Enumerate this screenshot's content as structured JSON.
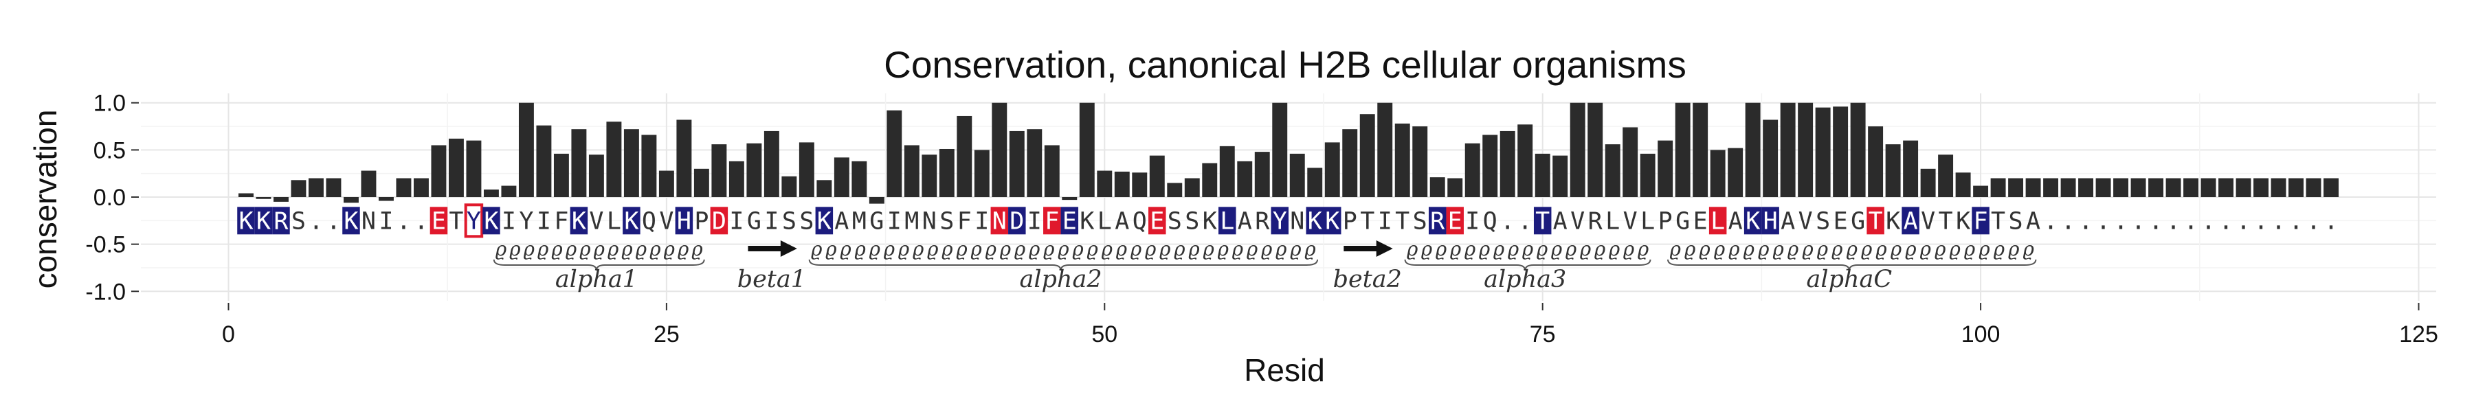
{
  "chart_data": {
    "type": "bar",
    "title": "Conservation, canonical H2B cellular organisms",
    "xlabel": "Resid",
    "ylabel": "conservation",
    "xlim": [
      -5,
      126
    ],
    "ylim": [
      -1.1,
      1.1
    ],
    "xticks": [
      0,
      25,
      50,
      75,
      100,
      125
    ],
    "yticks": [
      -1.0,
      -0.5,
      0.0,
      0.5,
      1.0
    ],
    "ytick_labels": [
      "-1.0",
      "-0.5",
      "0.0",
      "0.5",
      "1.0"
    ],
    "grid": true,
    "bar_color": "#2b2b2b",
    "x": [
      1,
      2,
      3,
      4,
      5,
      6,
      7,
      8,
      9,
      10,
      11,
      12,
      13,
      14,
      15,
      16,
      17,
      18,
      19,
      20,
      21,
      22,
      23,
      24,
      25,
      26,
      27,
      28,
      29,
      30,
      31,
      32,
      33,
      34,
      35,
      36,
      37,
      38,
      39,
      40,
      41,
      42,
      43,
      44,
      45,
      46,
      47,
      48,
      49,
      50,
      51,
      52,
      53,
      54,
      55,
      56,
      57,
      58,
      59,
      60,
      61,
      62,
      63,
      64,
      65,
      66,
      67,
      68,
      69,
      70,
      71,
      72,
      73,
      74,
      75,
      76,
      77,
      78,
      79,
      80,
      81,
      82,
      83,
      84,
      85,
      86,
      87,
      88,
      89,
      90,
      91,
      92,
      93,
      94,
      95,
      96,
      97,
      98,
      99,
      100,
      101,
      102,
      103,
      104,
      105,
      106,
      107,
      108,
      109,
      110,
      111,
      112,
      113,
      114,
      115,
      116,
      117,
      118,
      119,
      120
    ],
    "values": [
      0.04,
      -0.02,
      -0.05,
      0.18,
      0.2,
      0.2,
      -0.06,
      0.28,
      -0.04,
      0.2,
      0.2,
      0.55,
      0.62,
      0.6,
      0.08,
      0.12,
      1.0,
      0.76,
      0.46,
      0.72,
      0.45,
      0.8,
      0.72,
      0.66,
      0.28,
      0.82,
      0.3,
      0.56,
      0.38,
      0.57,
      0.7,
      0.22,
      0.58,
      0.18,
      0.42,
      0.38,
      -0.07,
      0.92,
      0.55,
      0.45,
      0.51,
      0.86,
      0.5,
      1.0,
      0.7,
      0.72,
      0.55,
      -0.03,
      1.0,
      0.28,
      0.27,
      0.26,
      0.44,
      0.15,
      0.2,
      0.36,
      0.54,
      0.38,
      0.48,
      1.0,
      0.46,
      0.31,
      0.58,
      0.72,
      0.88,
      1.0,
      0.78,
      0.75,
      0.21,
      0.2,
      0.57,
      0.66,
      0.7,
      0.77,
      0.46,
      0.44,
      1.0,
      1.0,
      0.56,
      0.74,
      0.46,
      0.6,
      1.0,
      1.0,
      0.5,
      0.52,
      1.0,
      0.82,
      1.0,
      1.0,
      0.95,
      0.96,
      1.0,
      0.75,
      0.56,
      0.6,
      0.3,
      0.45,
      0.26,
      0.12,
      0.2,
      0.2,
      0.2,
      0.2,
      0.2,
      0.2,
      0.2,
      0.2,
      0.2,
      0.2,
      0.2,
      0.2,
      0.2,
      0.2,
      0.2,
      0.2,
      0.2,
      0.2,
      0.2,
      0.2
    ],
    "sequence": {
      "y": -0.25,
      "residues": "KKRS..KNI..ETYKIYIFKVLKQVHPDIGISSKAMGIMNSFINDIFEKLAQESSKLARYNKKPTITSREIQ..TAVRLVLPGELAKHAVSEGTKAVTKFTSA.................",
      "basic_positions": [
        1,
        2,
        3,
        7,
        15,
        20,
        23,
        26,
        34,
        45,
        48,
        57,
        60,
        62,
        63,
        69,
        75,
        87,
        88,
        96,
        100
      ],
      "acidic_positions": [
        12,
        28,
        44,
        47,
        53,
        70,
        85,
        94
      ],
      "boxed_positions": [
        14
      ],
      "basic_color": "#1c1c7e",
      "acidic_color": "#e0192c"
    },
    "secondary_structure": [
      {
        "type": "helix",
        "name": "alpha1",
        "start": 15,
        "end": 27
      },
      {
        "type": "strand",
        "name": "beta1",
        "start": 30,
        "end": 32
      },
      {
        "type": "helix",
        "name": "alpha2",
        "start": 33,
        "end": 62
      },
      {
        "type": "strand",
        "name": "beta2",
        "start": 64,
        "end": 66
      },
      {
        "type": "helix",
        "name": "alpha3",
        "start": 67,
        "end": 81
      },
      {
        "type": "helix",
        "name": "alphaC",
        "start": 82,
        "end": 103
      }
    ]
  }
}
